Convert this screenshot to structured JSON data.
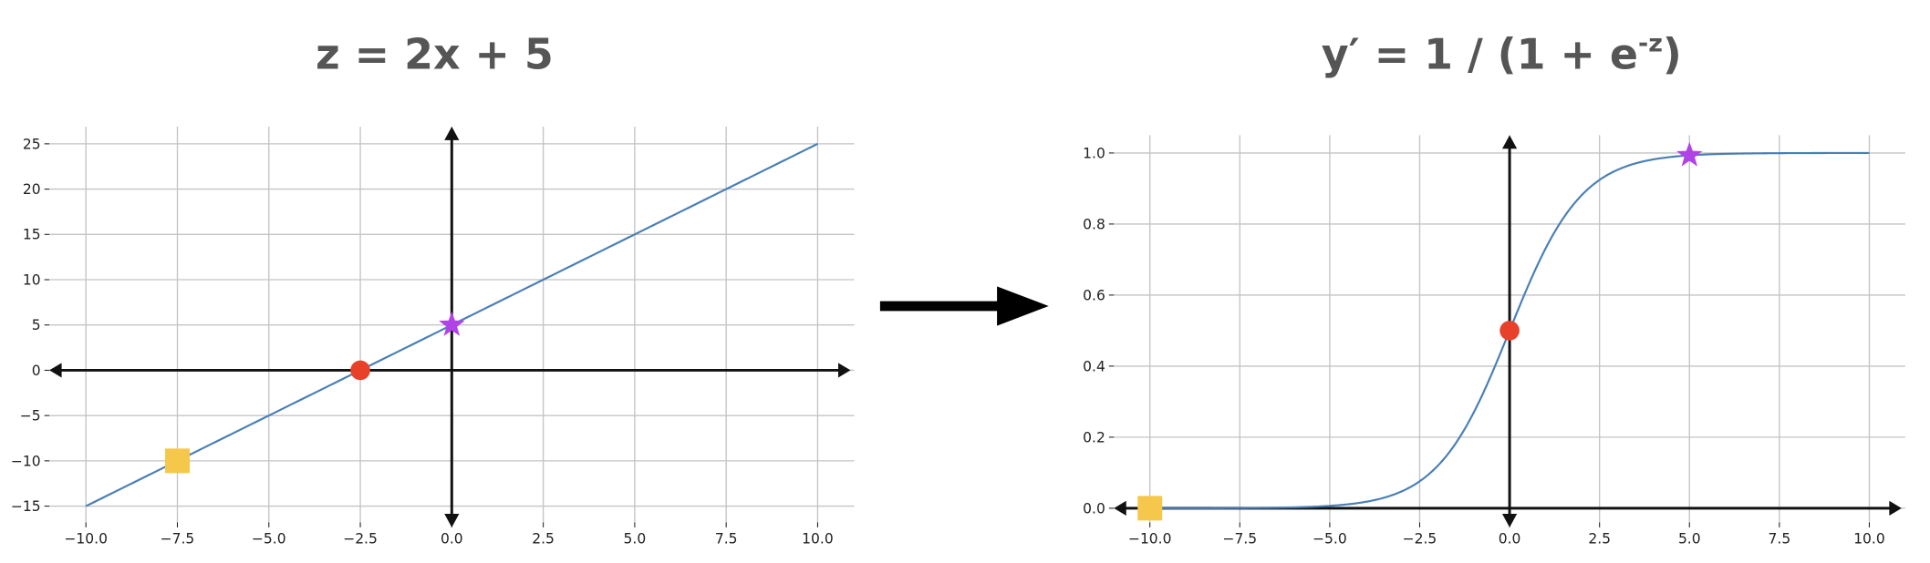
{
  "colors": {
    "line": "#4a7fb5",
    "grid": "#c4c4c4",
    "axis": "#111111",
    "title": "#555555",
    "square": "#f5c84c",
    "circle": "#e8412a",
    "star": "#b043e6"
  },
  "chart_data": [
    {
      "type": "line",
      "title": "z = 2x + 5",
      "function": "z = 2x + 5",
      "x": [
        -10,
        10
      ],
      "y": [
        -15,
        25
      ],
      "xlim": [
        -11,
        11
      ],
      "ylim": [
        -16.8,
        26.9
      ],
      "xticks": [
        "−10.0",
        "−7.5",
        "−5.0",
        "−2.5",
        "0.0",
        "2.5",
        "5.0",
        "7.5",
        "10.0"
      ],
      "yticks": [
        "−15",
        "−10",
        "−5",
        "0",
        "5",
        "10",
        "15",
        "20",
        "25"
      ],
      "grid": true,
      "markers": [
        {
          "shape": "square",
          "x": -7.5,
          "y": -10
        },
        {
          "shape": "circle",
          "x": -2.5,
          "y": 0
        },
        {
          "shape": "star",
          "x": 0,
          "y": 5
        }
      ]
    },
    {
      "type": "line",
      "title": "y′ = 1 / (1 + e",
      "title_sup": "-z",
      "title_end": ")",
      "function": "y = 1 / (1 + e^-z)",
      "x_range": [
        -10,
        10
      ],
      "xlim": [
        -11,
        11
      ],
      "ylim": [
        -0.04,
        1.05
      ],
      "xticks": [
        "−10.0",
        "−7.5",
        "−5.0",
        "−2.5",
        "0.0",
        "2.5",
        "5.0",
        "7.5",
        "10.0"
      ],
      "yticks": [
        "0.0",
        "0.2",
        "0.4",
        "0.6",
        "0.8",
        "1.0"
      ],
      "grid": true,
      "markers": [
        {
          "shape": "square",
          "x": -10,
          "y": 5e-05
        },
        {
          "shape": "circle",
          "x": 0,
          "y": 0.5
        },
        {
          "shape": "star",
          "x": 5,
          "y": 0.9933
        }
      ]
    }
  ]
}
